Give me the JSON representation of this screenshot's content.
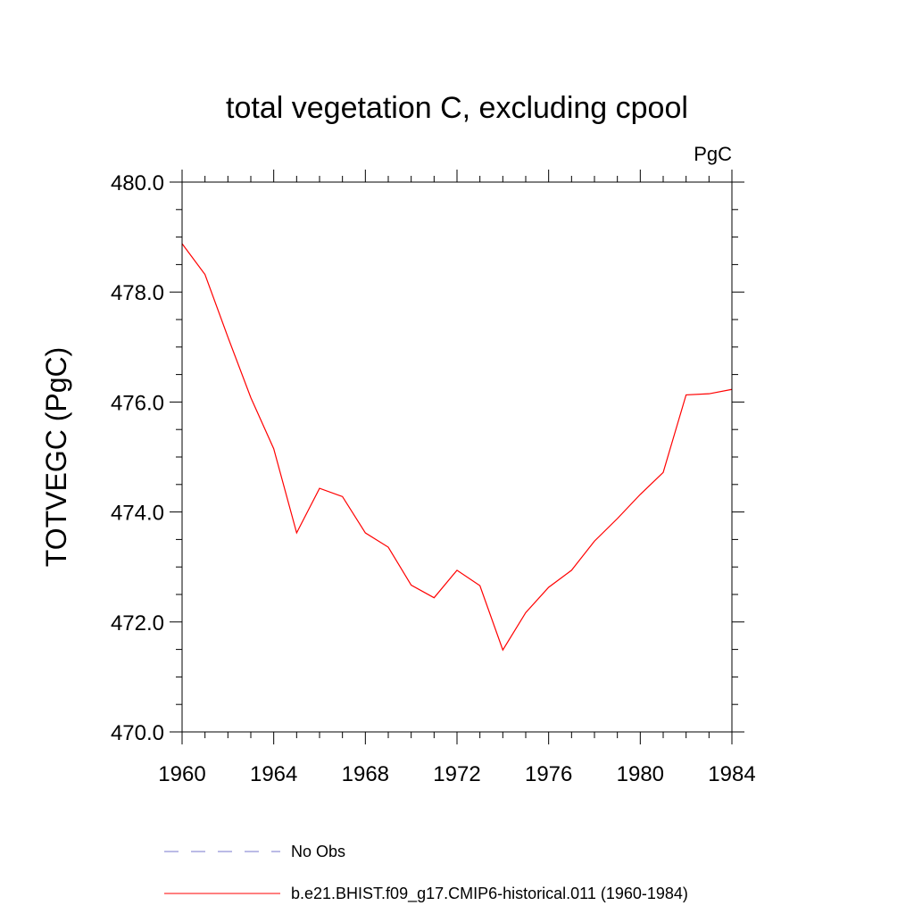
{
  "chart_data": {
    "type": "line",
    "title": "total vegetation C, excluding cpool",
    "units_label": "PgC",
    "ylabel": "TOTVEGC  (PgC)",
    "xlabel": "",
    "xlim": [
      1960,
      1984
    ],
    "ylim": [
      470.0,
      480.0
    ],
    "x_ticks": [
      "1960",
      "1964",
      "1968",
      "1972",
      "1976",
      "1980",
      "1984"
    ],
    "y_ticks": [
      "470.0",
      "472.0",
      "474.0",
      "476.0",
      "478.0",
      "480.0"
    ],
    "x": [
      1960,
      1961,
      1962,
      1963,
      1964,
      1965,
      1966,
      1967,
      1968,
      1969,
      1970,
      1971,
      1972,
      1973,
      1974,
      1975,
      1976,
      1977,
      1978,
      1979,
      1980,
      1981,
      1982,
      1983,
      1984
    ],
    "series": [
      {
        "name": "b.e21.BHIST.f09_g17.CMIP6-historical.011 (1960-1984)",
        "color": "#ff0000",
        "style": "solid",
        "values": [
          478.88,
          478.32,
          477.18,
          476.08,
          475.15,
          473.62,
          474.43,
          474.28,
          473.62,
          473.36,
          472.67,
          472.44,
          472.94,
          472.66,
          471.49,
          472.17,
          472.63,
          472.94,
          473.47,
          473.88,
          474.32,
          474.72,
          476.13,
          476.15,
          476.23
        ]
      }
    ],
    "legend": [
      {
        "label": "No Obs",
        "color": "#7777cc",
        "style": "dashed"
      },
      {
        "label": "b.e21.BHIST.f09_g17.CMIP6-historical.011 (1960-1984)",
        "color": "#ff0000",
        "style": "solid"
      }
    ],
    "legend_placement": "bottom",
    "grid": false
  }
}
